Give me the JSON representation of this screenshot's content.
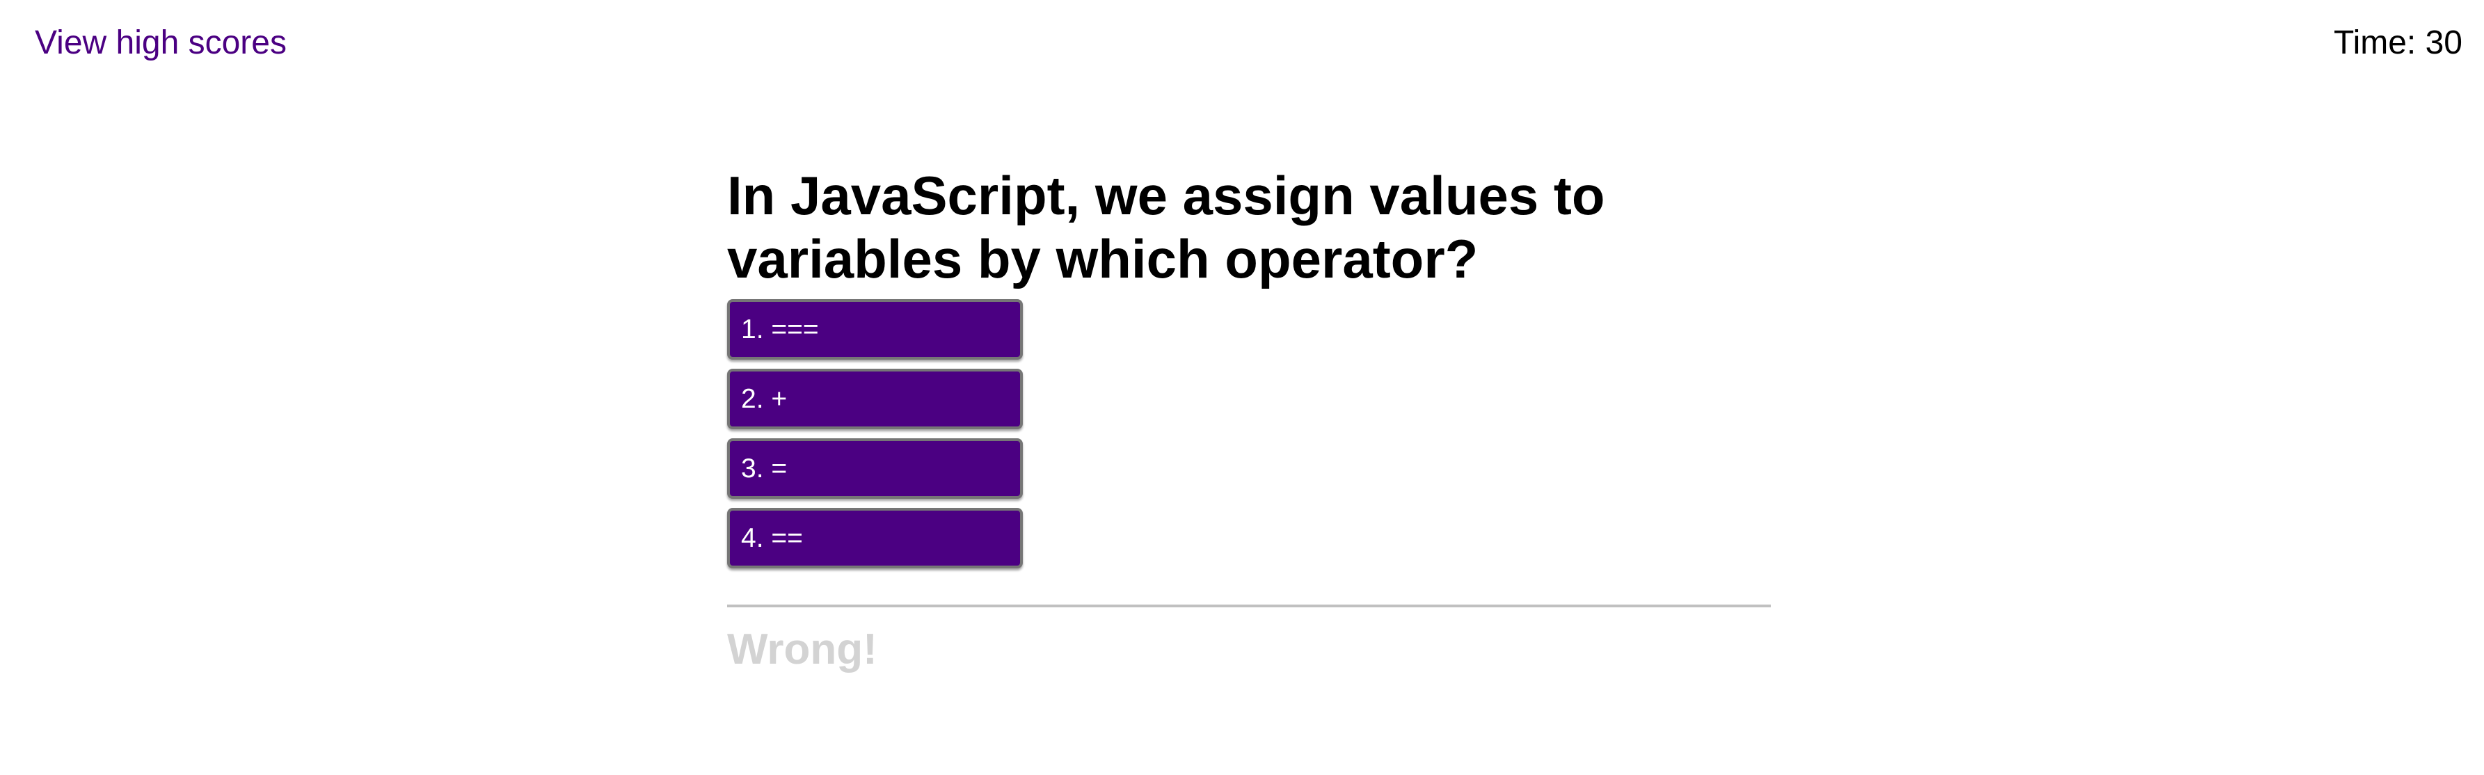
{
  "header": {
    "high_scores_link": "View high scores",
    "timer_text": "Time: 30"
  },
  "quiz": {
    "question": "In JavaScript, we assign values to variables by which operator?",
    "answers": [
      "1. ===",
      "2. +",
      "3. =",
      "4. =="
    ],
    "feedback": "Wrong!"
  },
  "colors": {
    "accent": "#4b0082",
    "feedback_text": "#d3d3d3",
    "divider": "#c0c0c0"
  }
}
